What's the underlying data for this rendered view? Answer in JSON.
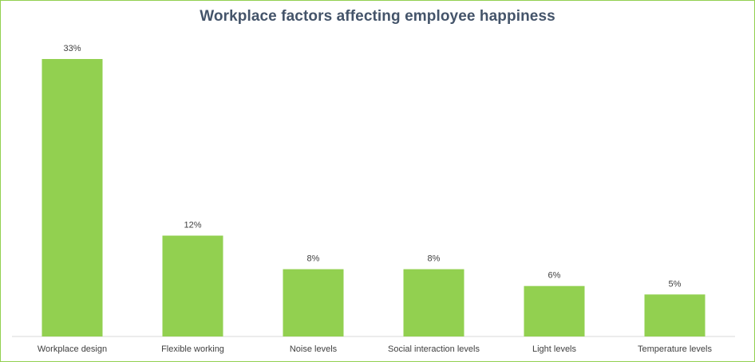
{
  "chart_data": {
    "type": "bar",
    "title": "Workplace factors affecting employee happiness",
    "categories": [
      "Workplace design",
      "Flexible working",
      "Noise levels",
      "Social interaction levels",
      "Light levels",
      "Temperature levels"
    ],
    "series": [
      {
        "values": [
          33,
          12,
          8,
          8,
          6,
          5
        ],
        "color": "#92d050"
      }
    ],
    "data_labels": [
      "33%",
      "12%",
      "8%",
      "8%",
      "6%",
      "5%"
    ],
    "ylim": [
      0,
      33
    ],
    "grid": false,
    "legend": "none",
    "frame_color": "#92d050"
  }
}
